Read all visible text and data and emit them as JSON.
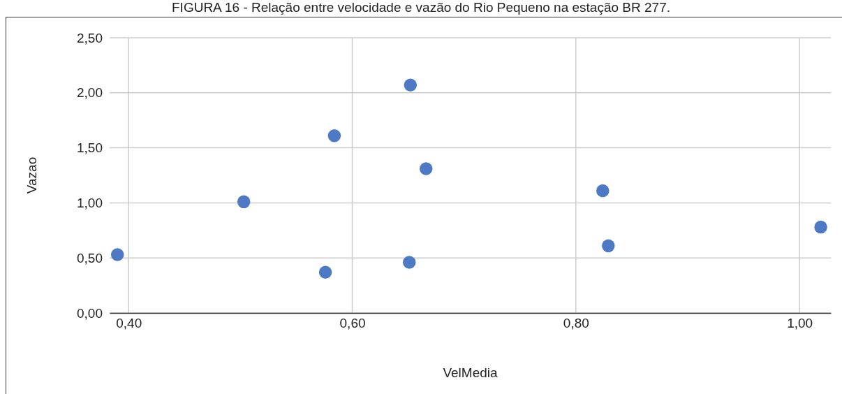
{
  "chart_data": {
    "type": "scatter",
    "title": "FIGURA 16 - Relação entre velocidade e vazão do Rio Pequeno na estação BR 277.",
    "xlabel": "VelMedia",
    "ylabel": "Vazao",
    "x": [
      0.39,
      0.503,
      0.576,
      0.584,
      0.652,
      0.651,
      0.666,
      0.824,
      0.829,
      1.019
    ],
    "series": [
      {
        "color": "#4e79c4",
        "values": [
          0.53,
          1.01,
          0.37,
          1.61,
          2.07,
          0.46,
          1.31,
          1.11,
          0.61,
          0.78
        ]
      }
    ],
    "xlim": [
      0.383,
      1.028
    ],
    "xticks": [
      {
        "value": 0.4,
        "label": "0,40"
      },
      {
        "value": 0.6,
        "label": "0,60"
      },
      {
        "value": 0.8,
        "label": "0,80"
      },
      {
        "value": 1.0,
        "label": "1,00"
      }
    ],
    "ylim": [
      0,
      2.5
    ],
    "yticks": [
      {
        "value": 0,
        "label": "0,00"
      },
      {
        "value": 0.5,
        "label": "0,50"
      },
      {
        "value": 1,
        "label": "1,00"
      },
      {
        "value": 1.5,
        "label": "1,50"
      },
      {
        "value": 2,
        "label": "2,00"
      },
      {
        "value": 2.5,
        "label": "2,50"
      }
    ],
    "grid": true,
    "marker": "circle"
  }
}
